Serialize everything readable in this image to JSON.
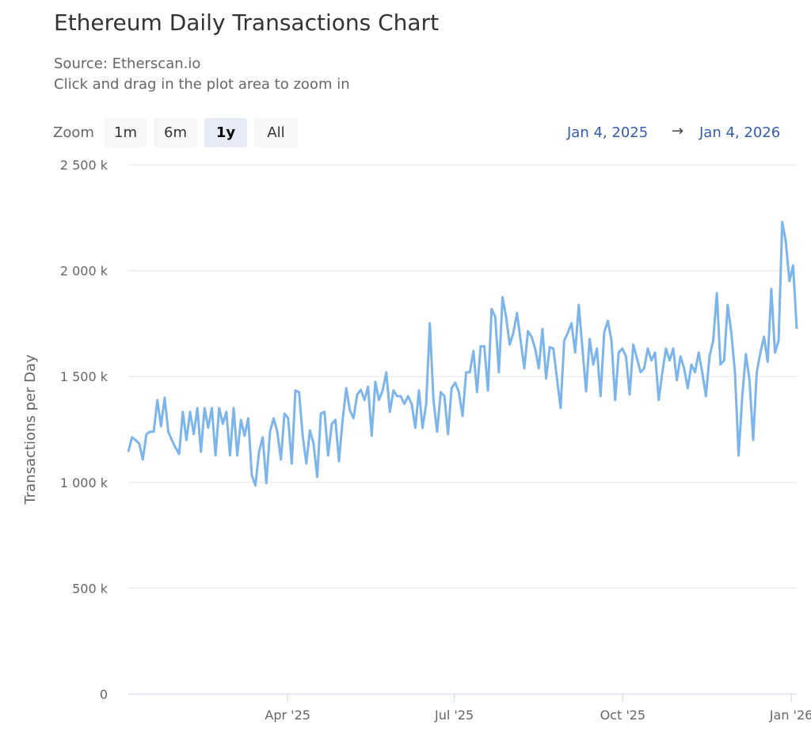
{
  "title": "Ethereum Daily Transactions Chart",
  "subtitle_source": "Source: Etherscan.io",
  "subtitle_hint": "Click and drag in the plot area to zoom in",
  "zoom": {
    "label": "Zoom",
    "buttons": [
      "1m",
      "6m",
      "1y",
      "All"
    ],
    "active": "1y"
  },
  "range": {
    "from": "Jan 4, 2025",
    "arrow": "→",
    "to": "Jan 4, 2026"
  },
  "chart_data": {
    "type": "line",
    "title": "Ethereum Daily Transactions Chart",
    "ylabel": "Transactions per Day",
    "xlabel": "",
    "x_range": [
      "2025-01-04",
      "2026-01-04"
    ],
    "ylim": [
      0,
      2500000
    ],
    "y_ticks": [
      0,
      500000,
      1000000,
      1500000,
      2000000,
      2500000
    ],
    "y_tick_labels": [
      "0",
      "500 k",
      "1 000 k",
      "1 500 k",
      "2 000 k",
      "2 500 k"
    ],
    "x_ticks": [
      {
        "date": "2025-04-01",
        "label": "Apr '25"
      },
      {
        "date": "2025-07-01",
        "label": "Jul '25"
      },
      {
        "date": "2025-10-01",
        "label": "Oct '25"
      },
      {
        "date": "2026-01-01",
        "label": "Jan '26"
      }
    ],
    "grid": true,
    "legend": "none",
    "color": "#7cb5ec",
    "series": [
      {
        "values": [
          1145000,
          1213000,
          1200000,
          1183000,
          1108000,
          1228000,
          1239000,
          1239000,
          1389000,
          1265000,
          1400000,
          1239000,
          1200000,
          1164000,
          1134000,
          1333000,
          1200000,
          1333000,
          1228000,
          1351000,
          1145000,
          1351000,
          1258000,
          1351000,
          1127000,
          1351000,
          1276000,
          1333000,
          1127000,
          1351000,
          1127000,
          1295000,
          1220000,
          1303000,
          1033000,
          985000,
          1145000,
          1213000,
          996000,
          1239000,
          1303000,
          1239000,
          1108000,
          1325000,
          1303000,
          1089000,
          1434000,
          1426000,
          1220000,
          1089000,
          1246000,
          1183000,
          1026000,
          1325000,
          1333000,
          1127000,
          1276000,
          1295000,
          1100000,
          1295000,
          1445000,
          1340000,
          1303000,
          1415000,
          1437000,
          1389000,
          1452000,
          1220000,
          1475000,
          1389000,
          1434000,
          1520000,
          1333000,
          1434000,
          1407000,
          1407000,
          1370000,
          1407000,
          1370000,
          1258000,
          1434000,
          1258000,
          1370000,
          1752000,
          1389000,
          1239000,
          1426000,
          1407000,
          1228000,
          1445000,
          1471000,
          1426000,
          1314000,
          1520000,
          1520000,
          1621000,
          1426000,
          1643000,
          1643000,
          1434000,
          1819000,
          1782000,
          1520000,
          1875000,
          1782000,
          1651000,
          1707000,
          1800000,
          1669000,
          1538000,
          1714000,
          1688000,
          1632000,
          1538000,
          1725000,
          1490000,
          1639000,
          1632000,
          1490000,
          1351000,
          1669000,
          1707000,
          1752000,
          1613000,
          1838000,
          1632000,
          1430000,
          1677000,
          1557000,
          1632000,
          1407000,
          1707000,
          1763000,
          1669000,
          1389000,
          1613000,
          1632000,
          1595000,
          1415000,
          1651000,
          1587000,
          1520000,
          1538000,
          1632000,
          1576000,
          1613000,
          1389000,
          1520000,
          1632000,
          1576000,
          1632000,
          1482000,
          1595000,
          1538000,
          1445000,
          1557000,
          1520000,
          1613000,
          1520000,
          1407000,
          1595000,
          1669000,
          1894000,
          1557000,
          1576000,
          1838000,
          1707000,
          1520000,
          1127000,
          1407000,
          1606000,
          1482000,
          1200000,
          1520000,
          1613000,
          1688000,
          1569000,
          1913000,
          1613000,
          1669000,
          2230000,
          2137000,
          1950000,
          2025000,
          1725000
        ]
      }
    ]
  }
}
